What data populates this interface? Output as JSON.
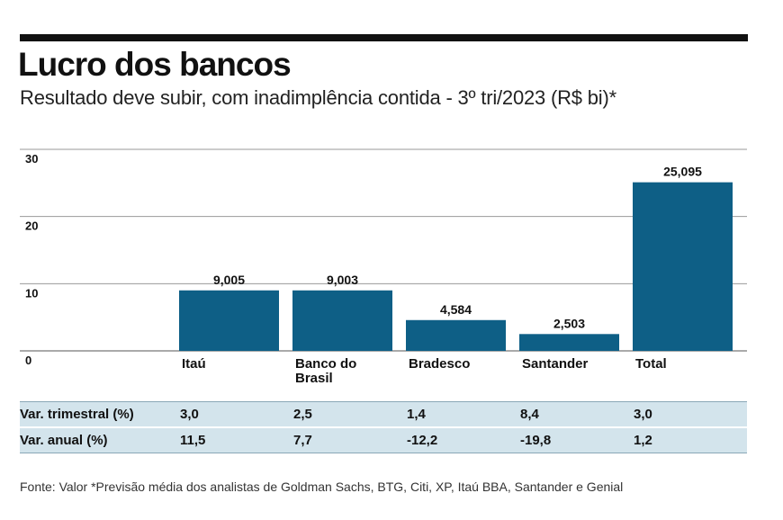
{
  "header": {
    "title": "Lucro dos bancos",
    "subtitle": "Resultado deve subir, com inadimplência contida - 3º tri/2023 (R$ bi)*"
  },
  "chart_data": {
    "type": "bar",
    "title": "Lucro dos bancos",
    "subtitle": "Resultado deve subir, com inadimplência contida - 3º tri/2023 (R$ bi)*",
    "xlabel": "",
    "ylabel": "",
    "ylim": [
      0,
      30
    ],
    "yticks": [
      "0",
      "10",
      "20",
      "30"
    ],
    "grid": true,
    "categories": [
      "Itaú",
      "Banco do Brasil",
      "Bradesco",
      "Santander",
      "Total"
    ],
    "category_lines": [
      [
        "Itaú"
      ],
      [
        "Banco do",
        "Brasil"
      ],
      [
        "Bradesco"
      ],
      [
        "Santander"
      ],
      [
        "Total"
      ]
    ],
    "values": [
      9.005,
      9.003,
      4.584,
      2.503,
      25.095
    ],
    "value_labels": [
      "9,005",
      "9,003",
      "4,584",
      "2,503",
      "25,095"
    ],
    "bar_color": "#0e5f86"
  },
  "stats_table": {
    "rows": [
      {
        "label": "Var. trimestral (%)",
        "values": [
          "3,0",
          "2,5",
          "1,4",
          "8,4",
          "3,0"
        ]
      },
      {
        "label": "Var. anual (%)",
        "values": [
          "11,5",
          "7,7",
          "-12,2",
          "-19,8",
          "1,2"
        ]
      }
    ]
  },
  "footnote": "Fonte: Valor *Previsão média dos analistas de Goldman Sachs, BTG, Citi, XP, Itaú BBA, Santander e Genial",
  "colors": {
    "bar": "#0e5f86",
    "table_row": "#d3e4ec",
    "rule": "#111111"
  }
}
